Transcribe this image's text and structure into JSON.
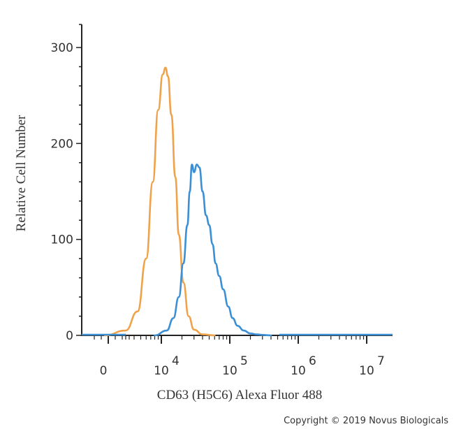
{
  "chart_data": {
    "type": "line",
    "title": "",
    "xlabel": "CD63 (H5C6) Alexa Fluor 488",
    "ylabel": "Relative Cell Number",
    "xscale": "biexponential",
    "xlim": [
      -2000,
      10000000
    ],
    "ylim": [
      0,
      300
    ],
    "grid": false,
    "x_ticks": [
      {
        "value": 0,
        "base": "0",
        "exp": ""
      },
      {
        "value": 10000,
        "base": "10",
        "exp": "4"
      },
      {
        "value": 100000,
        "base": "10",
        "exp": "5"
      },
      {
        "value": 1000000,
        "base": "10",
        "exp": "6"
      },
      {
        "value": 10000000,
        "base": "10",
        "exp": "7"
      }
    ],
    "y_ticks": [
      {
        "value": 0,
        "label": "0"
      },
      {
        "value": 100,
        "label": "100"
      },
      {
        "value": 200,
        "label": "200"
      },
      {
        "value": 300,
        "label": "300"
      }
    ],
    "series": [
      {
        "color": "#f0a24a",
        "x": [
          1500,
          3000,
          4500,
          6000,
          7500,
          9000,
          10500,
          11500,
          12500,
          14000,
          16000,
          18000,
          21000,
          25000,
          30000,
          40000,
          60000
        ],
        "y": [
          0,
          5,
          25,
          80,
          160,
          235,
          272,
          279,
          270,
          230,
          165,
          105,
          55,
          20,
          6,
          1,
          0
        ]
      },
      {
        "color": "#3b8fd4",
        "x": [
          8000,
          12000,
          15000,
          18000,
          21000,
          24000,
          26000,
          28000,
          30000,
          33000,
          36000,
          40000,
          45000,
          50000,
          56000,
          62000,
          70000,
          80000,
          95000,
          110000,
          130000,
          160000,
          200000,
          250000,
          300000,
          400000
        ],
        "y": [
          0,
          5,
          18,
          40,
          75,
          115,
          150,
          178,
          170,
          178,
          175,
          150,
          125,
          115,
          95,
          75,
          62,
          48,
          30,
          18,
          10,
          5,
          2,
          1,
          0.5,
          0
        ]
      }
    ]
  },
  "copyright": "Copyright © 2019 Novus Biologicals"
}
